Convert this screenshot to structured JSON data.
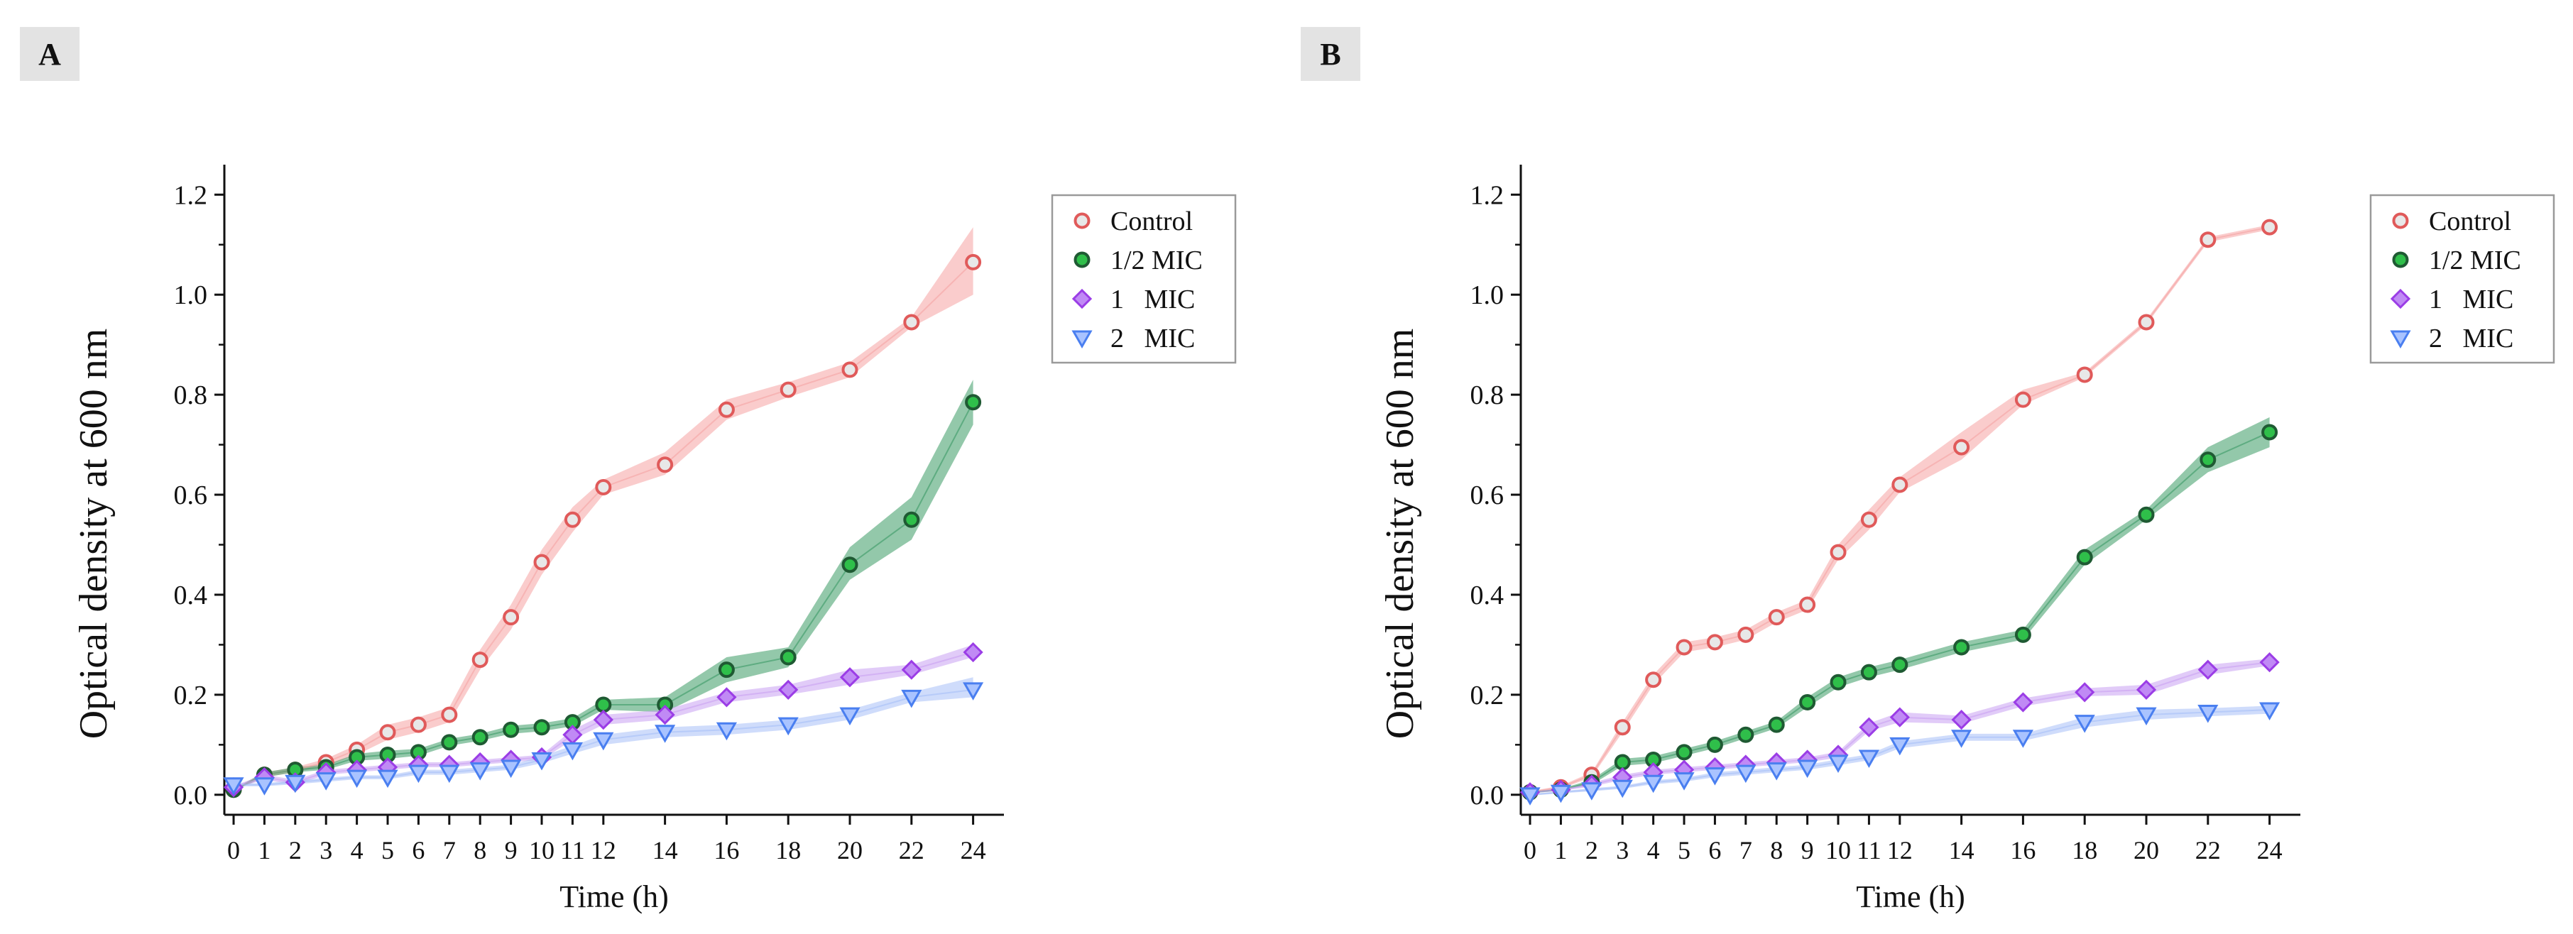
{
  "chart_data": [
    {
      "type": "line",
      "panel_label": "A",
      "xlabel": "Time (h)",
      "ylabel": "Optical density at 600 nm",
      "x": [
        0,
        1,
        2,
        3,
        4,
        5,
        6,
        7,
        8,
        9,
        10,
        11,
        12,
        14,
        16,
        18,
        20,
        22,
        24
      ],
      "x_tick_labels": [
        "0",
        "1",
        "2",
        "3",
        "4",
        "5",
        "6",
        "7",
        "8",
        "9",
        "10",
        "11",
        "12",
        "14",
        "16",
        "18",
        "20",
        "22",
        "24"
      ],
      "xlim": [
        -0.3,
        25
      ],
      "ylim": [
        -0.04,
        1.26
      ],
      "y_ticks": [
        0.0,
        0.2,
        0.4,
        0.6,
        0.8,
        1.0,
        1.2
      ],
      "y_tick_labels": [
        "0.0",
        "0.2",
        "0.4",
        "0.6",
        "0.8",
        "1.0",
        "1.2"
      ],
      "legend_position": "top-right",
      "series": [
        {
          "name": "Control",
          "marker": "circle",
          "color": "#e05a5a",
          "fill": "#f5a3a3",
          "values": [
            0.01,
            0.04,
            0.05,
            0.065,
            0.09,
            0.125,
            0.14,
            0.16,
            0.27,
            0.355,
            0.465,
            0.55,
            0.615,
            0.66,
            0.77,
            0.81,
            0.85,
            0.945,
            1.065
          ],
          "lower": [
            0.008,
            0.035,
            0.045,
            0.058,
            0.08,
            0.11,
            0.125,
            0.145,
            0.25,
            0.33,
            0.44,
            0.525,
            0.6,
            0.64,
            0.75,
            0.795,
            0.835,
            0.935,
            1.0
          ],
          "upper": [
            0.012,
            0.045,
            0.055,
            0.072,
            0.1,
            0.14,
            0.155,
            0.175,
            0.29,
            0.38,
            0.49,
            0.575,
            0.63,
            0.685,
            0.79,
            0.825,
            0.865,
            0.955,
            1.135
          ]
        },
        {
          "name": "1/2 MIC",
          "marker": "circle-filled",
          "color": "#2e8b57",
          "fill": "#3a9a65",
          "values": [
            0.01,
            0.04,
            0.05,
            0.055,
            0.075,
            0.08,
            0.085,
            0.105,
            0.115,
            0.13,
            0.135,
            0.145,
            0.18,
            0.18,
            0.25,
            0.275,
            0.46,
            0.55,
            0.785
          ],
          "lower": [
            0.008,
            0.035,
            0.045,
            0.05,
            0.068,
            0.072,
            0.078,
            0.098,
            0.108,
            0.122,
            0.127,
            0.137,
            0.17,
            0.165,
            0.225,
            0.255,
            0.43,
            0.51,
            0.74
          ],
          "upper": [
            0.012,
            0.045,
            0.055,
            0.06,
            0.082,
            0.088,
            0.092,
            0.112,
            0.122,
            0.138,
            0.143,
            0.153,
            0.19,
            0.195,
            0.275,
            0.295,
            0.495,
            0.595,
            0.83
          ]
        },
        {
          "name": "1   MIC",
          "marker": "diamond",
          "color": "#9b3de6",
          "fill": "#c9a1f2",
          "values": [
            0.015,
            0.035,
            0.025,
            0.045,
            0.05,
            0.055,
            0.06,
            0.06,
            0.065,
            0.07,
            0.075,
            0.12,
            0.15,
            0.16,
            0.195,
            0.21,
            0.235,
            0.25,
            0.285
          ],
          "lower": [
            0.012,
            0.03,
            0.02,
            0.04,
            0.045,
            0.05,
            0.055,
            0.055,
            0.06,
            0.065,
            0.07,
            0.11,
            0.14,
            0.15,
            0.185,
            0.2,
            0.22,
            0.24,
            0.275
          ],
          "upper": [
            0.018,
            0.04,
            0.03,
            0.05,
            0.055,
            0.06,
            0.065,
            0.065,
            0.07,
            0.075,
            0.08,
            0.13,
            0.16,
            0.17,
            0.205,
            0.22,
            0.25,
            0.26,
            0.3
          ]
        },
        {
          "name": "2   MIC",
          "marker": "triangle-down",
          "color": "#4a7ff0",
          "fill": "#a7c0f8",
          "values": [
            0.02,
            0.02,
            0.025,
            0.03,
            0.035,
            0.035,
            0.045,
            0.045,
            0.05,
            0.055,
            0.07,
            0.09,
            0.11,
            0.125,
            0.13,
            0.14,
            0.16,
            0.195,
            0.21
          ],
          "lower": [
            0.017,
            0.017,
            0.021,
            0.026,
            0.031,
            0.031,
            0.04,
            0.04,
            0.045,
            0.05,
            0.063,
            0.082,
            0.1,
            0.115,
            0.12,
            0.13,
            0.15,
            0.185,
            0.195
          ],
          "upper": [
            0.023,
            0.023,
            0.029,
            0.034,
            0.039,
            0.039,
            0.05,
            0.05,
            0.055,
            0.06,
            0.077,
            0.098,
            0.12,
            0.135,
            0.14,
            0.15,
            0.17,
            0.205,
            0.235
          ]
        }
      ]
    },
    {
      "type": "line",
      "panel_label": "B",
      "xlabel": "Time (h)",
      "ylabel": "Optical density at 600 nm",
      "x": [
        0,
        1,
        2,
        3,
        4,
        5,
        6,
        7,
        8,
        9,
        10,
        11,
        12,
        14,
        16,
        18,
        20,
        22,
        24
      ],
      "x_tick_labels": [
        "0",
        "1",
        "2",
        "3",
        "4",
        "5",
        "6",
        "7",
        "8",
        "9",
        "10",
        "11",
        "12",
        "14",
        "16",
        "18",
        "20",
        "22",
        "24"
      ],
      "xlim": [
        -0.3,
        25
      ],
      "ylim": [
        -0.04,
        1.26
      ],
      "y_ticks": [
        0.0,
        0.2,
        0.4,
        0.6,
        0.8,
        1.0,
        1.2
      ],
      "y_tick_labels": [
        "0.0",
        "0.2",
        "0.4",
        "0.6",
        "0.8",
        "1.0",
        "1.2"
      ],
      "legend_position": "top-right",
      "series": [
        {
          "name": "Control",
          "marker": "circle",
          "color": "#e05a5a",
          "fill": "#f5a3a3",
          "values": [
            0.005,
            0.015,
            0.04,
            0.135,
            0.23,
            0.295,
            0.305,
            0.32,
            0.355,
            0.38,
            0.485,
            0.55,
            0.62,
            0.695,
            0.79,
            0.84,
            0.945,
            1.11,
            1.135
          ],
          "lower": [
            0.003,
            0.012,
            0.035,
            0.125,
            0.22,
            0.285,
            0.295,
            0.31,
            0.345,
            0.37,
            0.47,
            0.53,
            0.605,
            0.67,
            0.78,
            0.835,
            0.94,
            1.105,
            1.13
          ],
          "upper": [
            0.007,
            0.018,
            0.045,
            0.145,
            0.24,
            0.305,
            0.315,
            0.33,
            0.365,
            0.39,
            0.5,
            0.57,
            0.635,
            0.725,
            0.81,
            0.845,
            0.95,
            1.115,
            1.14
          ]
        },
        {
          "name": "1/2 MIC",
          "marker": "circle-filled",
          "color": "#2e8b57",
          "fill": "#3a9a65",
          "values": [
            0.005,
            0.01,
            0.025,
            0.065,
            0.07,
            0.085,
            0.1,
            0.12,
            0.14,
            0.185,
            0.225,
            0.245,
            0.26,
            0.295,
            0.32,
            0.475,
            0.56,
            0.67,
            0.725
          ],
          "lower": [
            0.003,
            0.008,
            0.02,
            0.058,
            0.063,
            0.078,
            0.093,
            0.113,
            0.133,
            0.175,
            0.215,
            0.235,
            0.25,
            0.285,
            0.31,
            0.46,
            0.55,
            0.645,
            0.695
          ],
          "upper": [
            0.007,
            0.012,
            0.03,
            0.072,
            0.077,
            0.092,
            0.107,
            0.127,
            0.147,
            0.195,
            0.235,
            0.255,
            0.27,
            0.305,
            0.33,
            0.49,
            0.57,
            0.695,
            0.755
          ]
        },
        {
          "name": "1   MIC",
          "marker": "diamond",
          "color": "#9b3de6",
          "fill": "#c9a1f2",
          "values": [
            0.005,
            0.01,
            0.02,
            0.035,
            0.045,
            0.05,
            0.055,
            0.06,
            0.065,
            0.07,
            0.08,
            0.135,
            0.155,
            0.15,
            0.185,
            0.205,
            0.21,
            0.25,
            0.265
          ],
          "lower": [
            0.003,
            0.008,
            0.016,
            0.03,
            0.04,
            0.045,
            0.05,
            0.055,
            0.06,
            0.065,
            0.074,
            0.127,
            0.145,
            0.142,
            0.177,
            0.197,
            0.2,
            0.24,
            0.258
          ],
          "upper": [
            0.007,
            0.012,
            0.024,
            0.04,
            0.05,
            0.055,
            0.06,
            0.065,
            0.07,
            0.075,
            0.086,
            0.143,
            0.165,
            0.158,
            0.193,
            0.213,
            0.22,
            0.26,
            0.272
          ]
        },
        {
          "name": "2   MIC",
          "marker": "triangle-down",
          "color": "#4a7ff0",
          "fill": "#a7c0f8",
          "values": [
            0.0,
            0.005,
            0.01,
            0.015,
            0.025,
            0.03,
            0.04,
            0.045,
            0.05,
            0.055,
            0.065,
            0.075,
            0.1,
            0.115,
            0.115,
            0.145,
            0.16,
            0.165,
            0.17
          ],
          "lower": [
            -0.002,
            0.003,
            0.007,
            0.012,
            0.021,
            0.026,
            0.035,
            0.04,
            0.045,
            0.05,
            0.059,
            0.069,
            0.093,
            0.108,
            0.108,
            0.135,
            0.15,
            0.157,
            0.162
          ],
          "upper": [
            0.002,
            0.007,
            0.013,
            0.018,
            0.029,
            0.034,
            0.045,
            0.05,
            0.055,
            0.06,
            0.071,
            0.081,
            0.107,
            0.122,
            0.122,
            0.155,
            0.17,
            0.173,
            0.178
          ]
        }
      ]
    }
  ]
}
